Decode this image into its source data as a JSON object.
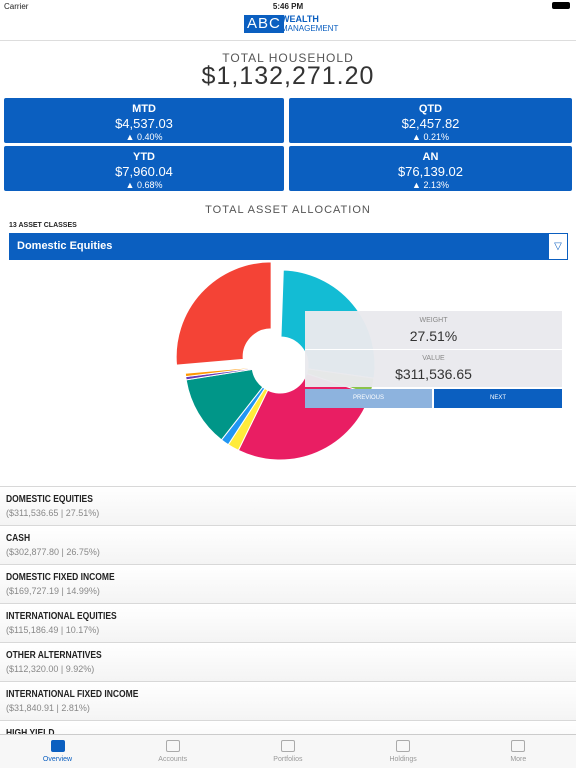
{
  "status_bar": {
    "carrier": "Carrier",
    "time": "5:46 PM"
  },
  "header": {
    "logo": "ABC",
    "logo_line1": "WEALTH",
    "logo_line2": "MANAGEMENT"
  },
  "summary": {
    "label": "TOTAL HOUSEHOLD",
    "value": "$1,132,271.20",
    "cards": [
      {
        "label": "MTD",
        "value": "$4,537.03",
        "change": "▲ 0.40%"
      },
      {
        "label": "QTD",
        "value": "$2,457.82",
        "change": "▲ 0.21%"
      },
      {
        "label": "YTD",
        "value": "$7,960.04",
        "change": "▲ 0.68%"
      },
      {
        "label": "AN",
        "value": "$76,139.02",
        "change": "▲ 2.13%"
      }
    ]
  },
  "allocation": {
    "title": "TOTAL ASSET ALLOCATION",
    "count_label": "13 ASSET CLASSES",
    "selected": "Domestic Equities",
    "tooltip": {
      "weight_label": "WEIGHT",
      "weight": "27.51%",
      "value_label": "VALUE",
      "value": "$311,536.65",
      "previous": "PREVIOUS",
      "next": "NEXT"
    }
  },
  "asset_list": [
    {
      "name": "DOMESTIC EQUITIES",
      "detail": "($311,536.65 | 27.51%)"
    },
    {
      "name": "CASH",
      "detail": "($302,877.80 | 26.75%)"
    },
    {
      "name": "DOMESTIC FIXED INCOME",
      "detail": "($169,727.19 | 14.99%)"
    },
    {
      "name": "INTERNATIONAL EQUITIES",
      "detail": "($115,186.49 | 10.17%)"
    },
    {
      "name": "OTHER ALTERNATIVES",
      "detail": "($112,320.00 | 9.92%)"
    },
    {
      "name": "INTERNATIONAL FIXED INCOME",
      "detail": "($31,840.91 | 2.81%)"
    },
    {
      "name": "HIGH YIELD"
    }
  ],
  "tabs": [
    "Overview",
    "Accounts",
    "Portfolios",
    "Holdings",
    "More"
  ]
}
